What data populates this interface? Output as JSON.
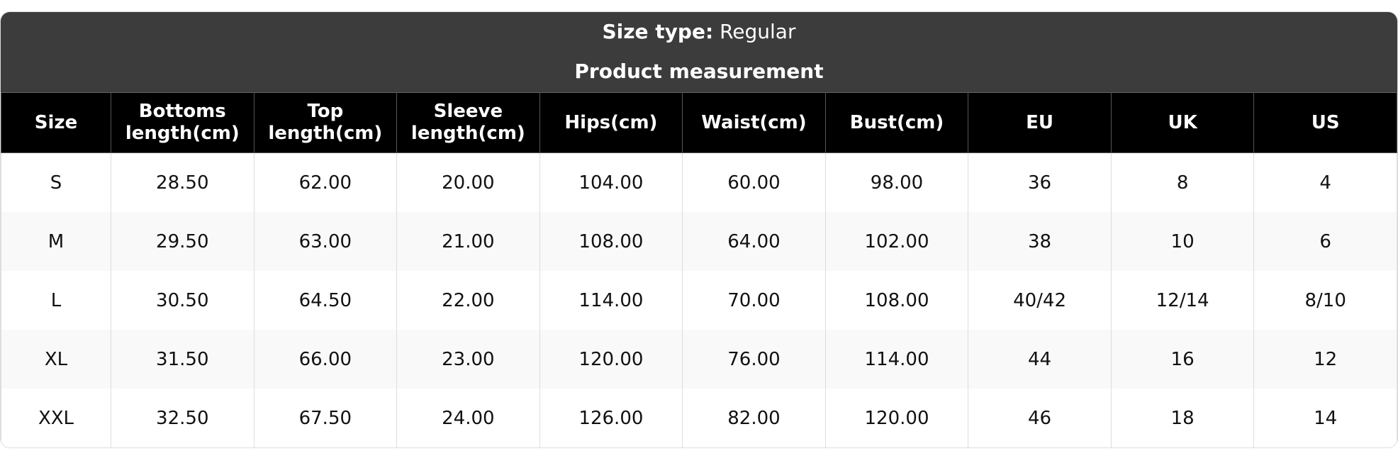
{
  "header": {
    "size_type_label": "Size type:",
    "size_type_value": "Regular",
    "title": "Product measurement"
  },
  "columns": [
    "Size",
    "Bottoms length(cm)",
    "Top length(cm)",
    "Sleeve length(cm)",
    "Hips(cm)",
    "Waist(cm)",
    "Bust(cm)",
    "EU",
    "UK",
    "US"
  ],
  "rows": [
    [
      "S",
      "28.50",
      "62.00",
      "20.00",
      "104.00",
      "60.00",
      "98.00",
      "36",
      "8",
      "4"
    ],
    [
      "M",
      "29.50",
      "63.00",
      "21.00",
      "108.00",
      "64.00",
      "102.00",
      "38",
      "10",
      "6"
    ],
    [
      "L",
      "30.50",
      "64.50",
      "22.00",
      "114.00",
      "70.00",
      "108.00",
      "40/42",
      "12/14",
      "8/10"
    ],
    [
      "XL",
      "31.50",
      "66.00",
      "23.00",
      "120.00",
      "76.00",
      "114.00",
      "44",
      "16",
      "12"
    ],
    [
      "XXL",
      "32.50",
      "67.50",
      "24.00",
      "126.00",
      "82.00",
      "120.00",
      "46",
      "18",
      "14"
    ]
  ]
}
